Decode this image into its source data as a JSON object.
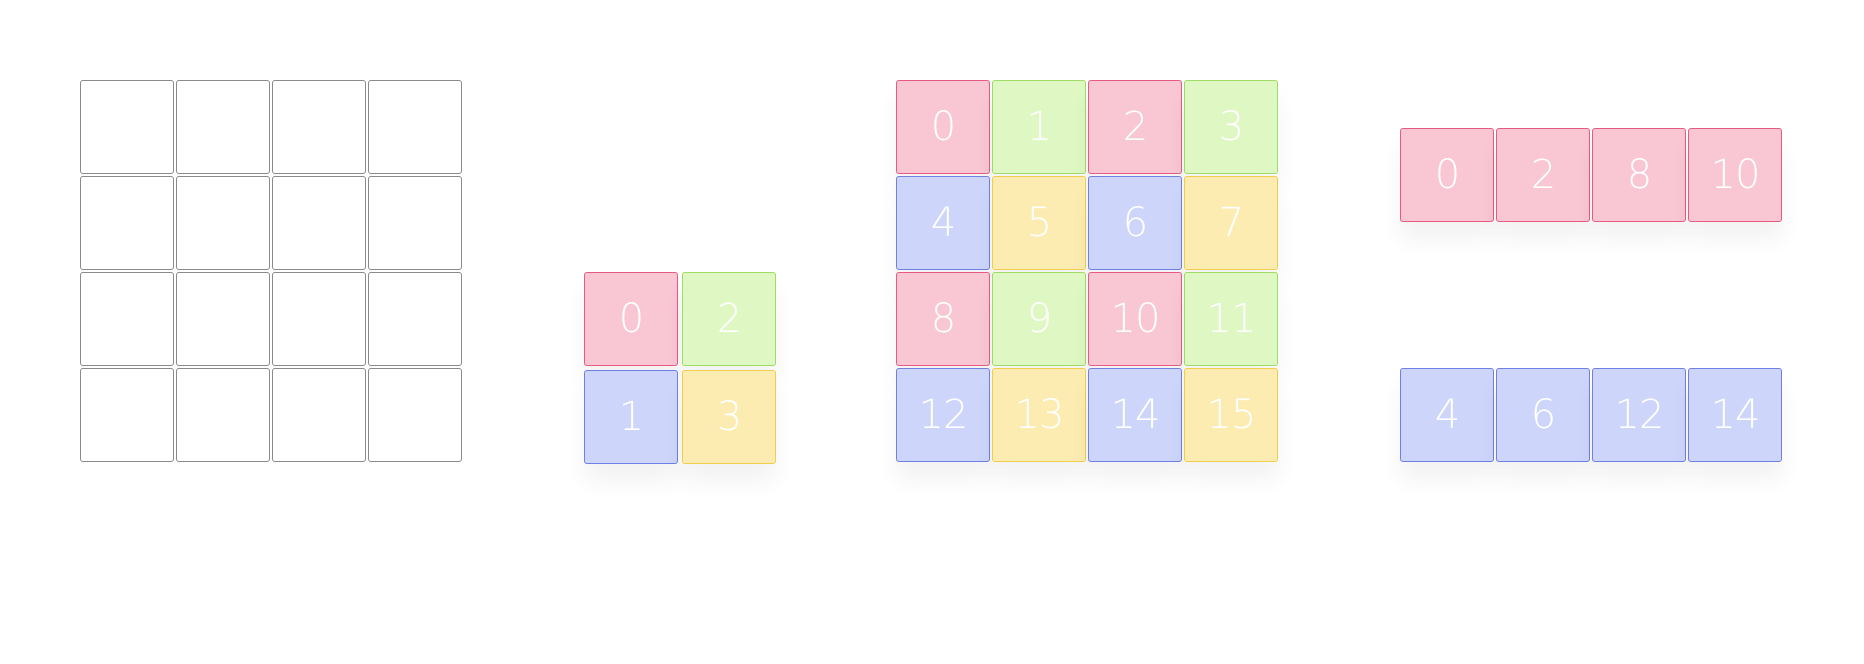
{
  "colors": {
    "pink": "#f9c6d3",
    "green": "#dff7c2",
    "blue": "#cdd5fb",
    "yellow": "#fdecb1",
    "empty_border": "#8a8a8a"
  },
  "empty_grid": {
    "rows": 4,
    "cols": 4
  },
  "block_grid": {
    "cells": [
      {
        "label": "0",
        "color": "pink"
      },
      {
        "label": "2",
        "color": "green"
      },
      {
        "label": "1",
        "color": "blue"
      },
      {
        "label": "3",
        "color": "yellow"
      }
    ]
  },
  "index_grid": {
    "cells": [
      {
        "label": "0",
        "color": "pink"
      },
      {
        "label": "1",
        "color": "green"
      },
      {
        "label": "2",
        "color": "pink"
      },
      {
        "label": "3",
        "color": "green"
      },
      {
        "label": "4",
        "color": "blue"
      },
      {
        "label": "5",
        "color": "yellow"
      },
      {
        "label": "6",
        "color": "blue"
      },
      {
        "label": "7",
        "color": "yellow"
      },
      {
        "label": "8",
        "color": "pink"
      },
      {
        "label": "9",
        "color": "green"
      },
      {
        "label": "10",
        "color": "pink"
      },
      {
        "label": "11",
        "color": "green"
      },
      {
        "label": "12",
        "color": "blue"
      },
      {
        "label": "13",
        "color": "yellow"
      },
      {
        "label": "14",
        "color": "blue"
      },
      {
        "label": "15",
        "color": "yellow"
      }
    ]
  },
  "row_top": {
    "cells": [
      {
        "label": "0",
        "color": "pink"
      },
      {
        "label": "2",
        "color": "pink"
      },
      {
        "label": "8",
        "color": "pink"
      },
      {
        "label": "10",
        "color": "pink"
      }
    ]
  },
  "row_bottom": {
    "cells": [
      {
        "label": "4",
        "color": "blue"
      },
      {
        "label": "6",
        "color": "blue"
      },
      {
        "label": "12",
        "color": "blue"
      },
      {
        "label": "14",
        "color": "blue"
      }
    ]
  }
}
